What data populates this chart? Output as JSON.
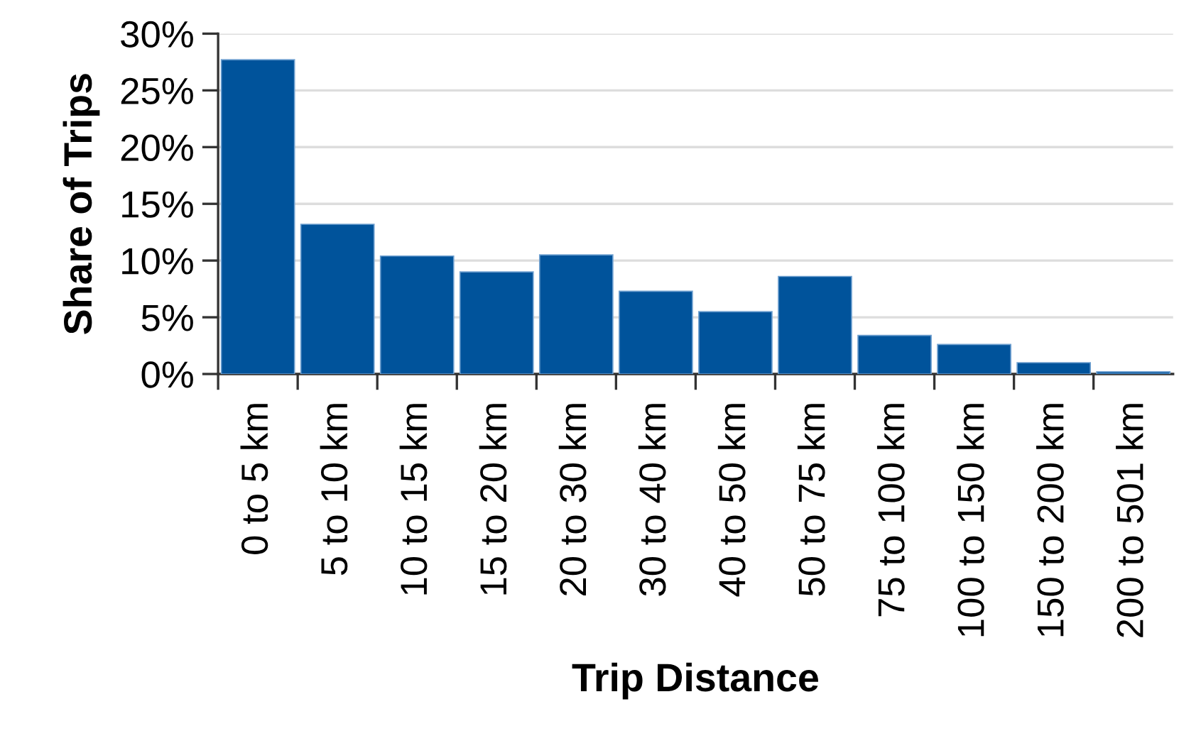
{
  "chart_data": {
    "type": "bar",
    "xlabel": "Trip Distance",
    "ylabel": "Share of Trips",
    "categories": [
      "0 to 5 km",
      "5 to 10 km",
      "10 to 15 km",
      "15 to 20 km",
      "20 to 30 km",
      "30 to 40 km",
      "40 to 50 km",
      "50 to 75 km",
      "75 to 100 km",
      "100 to 150 km",
      "150 to 200 km",
      "200 to 501 km"
    ],
    "values": [
      27.7,
      13.2,
      10.4,
      9.0,
      10.5,
      7.3,
      5.5,
      8.6,
      3.4,
      2.6,
      1.0,
      0.2
    ],
    "color": "#00539b",
    "ylim": [
      0,
      30
    ],
    "yticks": [
      {
        "value": 0,
        "label": "0%"
      },
      {
        "value": 5,
        "label": "5%"
      },
      {
        "value": 10,
        "label": "10%"
      },
      {
        "value": 15,
        "label": "15%"
      },
      {
        "value": 20,
        "label": "20%"
      },
      {
        "value": 25,
        "label": "25%"
      },
      {
        "value": 30,
        "label": "30%"
      }
    ],
    "grid": "y",
    "legend": false
  }
}
